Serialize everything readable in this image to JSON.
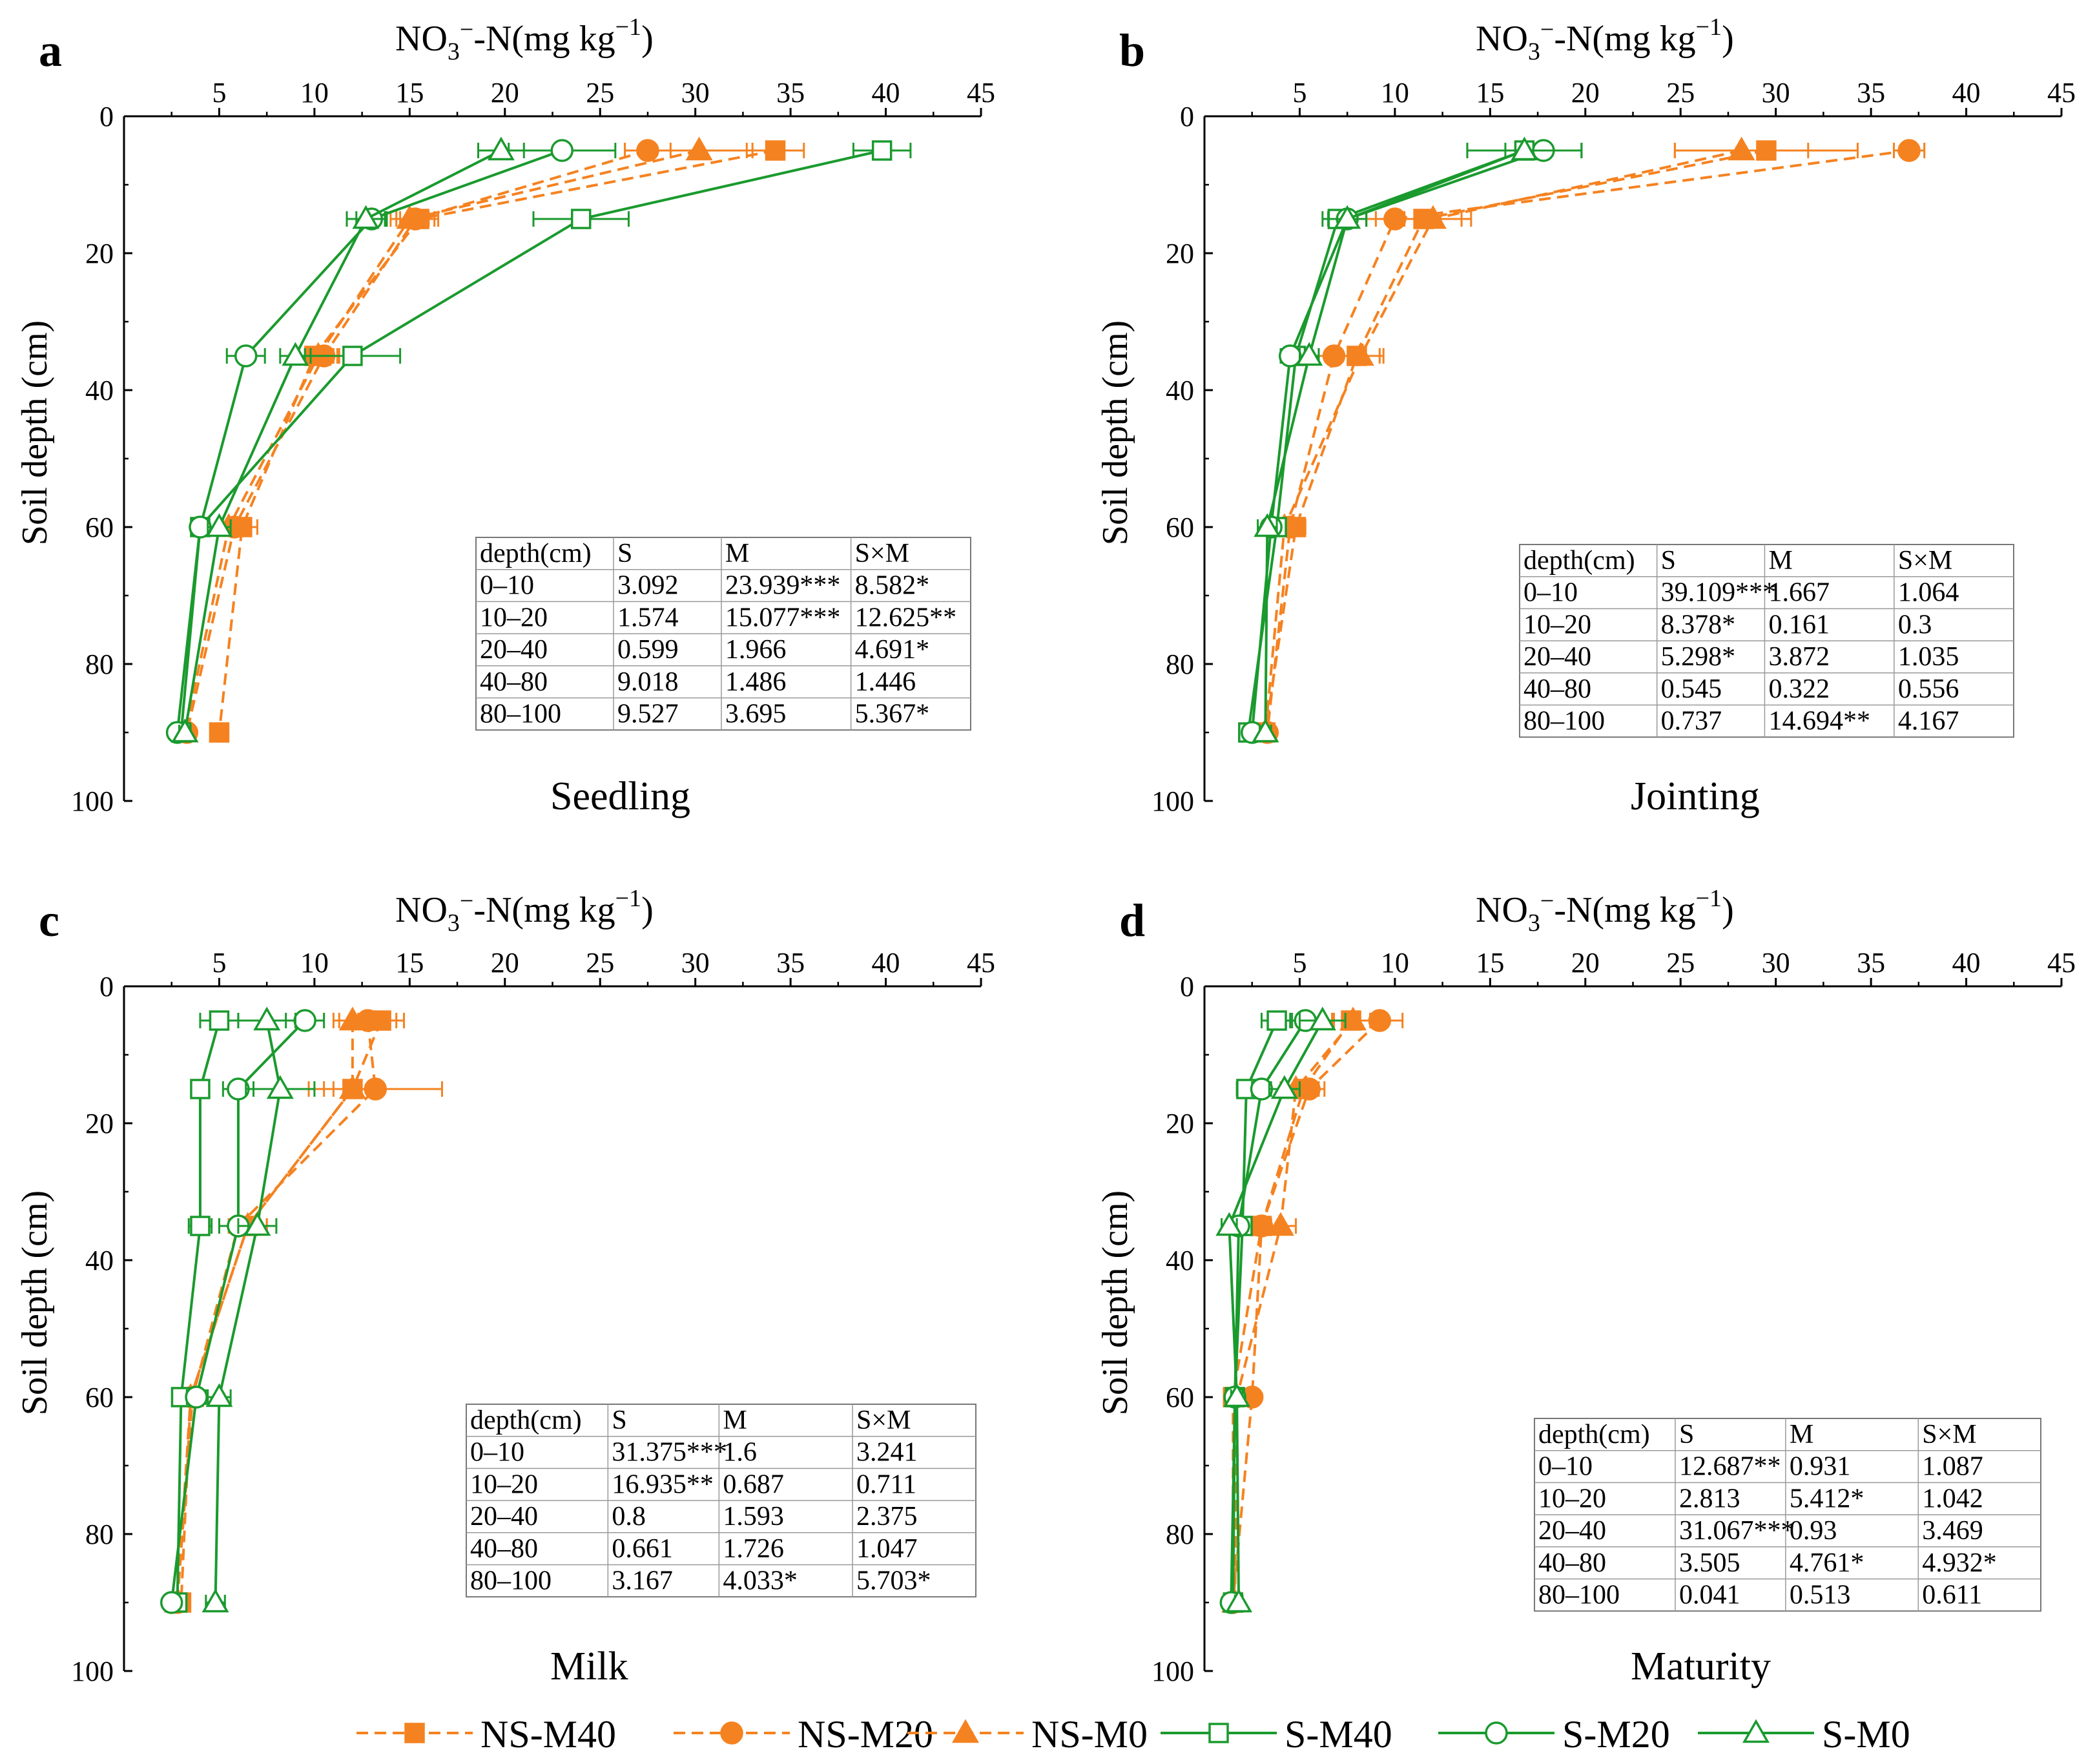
{
  "chart_data": {
    "type": "line",
    "x_axis_title": {
      "main": "NO",
      "sub": "3",
      "sup": "−",
      "rest": "-N(mg kg",
      "unit_sup": "−1",
      "close": ")"
    },
    "y_axis_title": "Soil depth (cm)",
    "xlim": [
      0,
      45
    ],
    "ylim": [
      0,
      100
    ],
    "x_ticks": [
      "5",
      "10",
      "15",
      "20",
      "25",
      "30",
      "35",
      "40",
      "45"
    ],
    "y_ticks": [
      "0",
      "20",
      "40",
      "60",
      "80",
      "100"
    ],
    "depths": [
      5,
      15,
      35,
      60,
      90
    ],
    "series_styles": [
      {
        "name": "NS-M40",
        "color": "#F58220",
        "dashed": true,
        "marker": "square",
        "filled": true
      },
      {
        "name": "NS-M20",
        "color": "#F58220",
        "dashed": true,
        "marker": "circle",
        "filled": true
      },
      {
        "name": "NS-M0",
        "color": "#F58220",
        "dashed": true,
        "marker": "triangle",
        "filled": true
      },
      {
        "name": "S-M40",
        "color": "#1A9A2E",
        "dashed": false,
        "marker": "square",
        "filled": false
      },
      {
        "name": "S-M20",
        "color": "#1A9A2E",
        "dashed": false,
        "marker": "circle",
        "filled": false
      },
      {
        "name": "S-M0",
        "color": "#1A9A2E",
        "dashed": false,
        "marker": "triangle",
        "filled": false
      }
    ],
    "panels": [
      {
        "letter": "a",
        "stage": "Seedling",
        "series": [
          {
            "name": "NS-M40",
            "x": [
              34.2,
              15.5,
              10.0,
              6.2,
              5.0
            ],
            "err": [
              1.5,
              1.0,
              1.0,
              0.8,
              0.2
            ]
          },
          {
            "name": "NS-M20",
            "x": [
              27.5,
              15.3,
              10.5,
              5.8,
              3.3
            ],
            "err": [
              1.2,
              1.0,
              0.8,
              0.6,
              0.2
            ]
          },
          {
            "name": "NS-M0",
            "x": [
              30.2,
              15.0,
              10.2,
              5.5,
              3.2
            ],
            "err": [
              2.8,
              1.0,
              1.0,
              0.6,
              0.2
            ]
          },
          {
            "name": "S-M40",
            "x": [
              39.8,
              24.0,
              12.0,
              4.0,
              3.0
            ],
            "err": [
              1.5,
              2.5,
              2.5,
              0.4,
              0.3
            ]
          },
          {
            "name": "S-M20",
            "x": [
              23.0,
              13.0,
              6.4,
              4.0,
              2.8
            ],
            "err": [
              2.8,
              0.8,
              1.0,
              0.3,
              0.3
            ]
          },
          {
            "name": "S-M0",
            "x": [
              19.8,
              12.7,
              9.0,
              5.0,
              3.2
            ],
            "err": [
              1.2,
              1.0,
              0.8,
              0.6,
              0.3
            ]
          }
        ],
        "stats": {
          "header": [
            "depth(cm)",
            "S",
            "M",
            "S×M"
          ],
          "rows": [
            [
              "0–10",
              "3.092",
              "23.939***",
              "8.582*"
            ],
            [
              "10–20",
              "1.574",
              "15.077***",
              "12.625**"
            ],
            [
              "20–40",
              "0.599",
              "1.966",
              "4.691*"
            ],
            [
              "40–80",
              "9.018",
              "1.486",
              "1.446"
            ],
            [
              "80–100",
              "9.527",
              "3.695",
              "5.367*"
            ]
          ]
        }
      },
      {
        "letter": "b",
        "stage": "Jointing",
        "series": [
          {
            "name": "NS-M40",
            "x": [
              29.5,
              11.5,
              8.0,
              4.8,
              3.2
            ],
            "err": [
              4.8,
              2.5,
              1.2,
              0.5,
              0.3
            ]
          },
          {
            "name": "NS-M20",
            "x": [
              37.0,
              10.0,
              6.8,
              4.5,
              3.3
            ],
            "err": [
              0.8,
              1.5,
              0.8,
              0.5,
              0.3
            ]
          },
          {
            "name": "NS-M0",
            "x": [
              28.2,
              12.0,
              8.2,
              4.2,
              3.2
            ],
            "err": [
              3.5,
              1.5,
              1.2,
              0.5,
              0.2
            ]
          },
          {
            "name": "S-M40",
            "x": [
              16.8,
              7.0,
              4.8,
              3.8,
              2.3
            ],
            "err": [
              3.0,
              0.8,
              0.5,
              0.4,
              0.3
            ]
          },
          {
            "name": "S-M20",
            "x": [
              17.8,
              7.5,
              4.5,
              3.5,
              2.5
            ],
            "err": [
              2.0,
              1.0,
              0.5,
              0.4,
              0.3
            ]
          },
          {
            "name": "S-M0",
            "x": [
              16.8,
              7.5,
              5.5,
              3.3,
              3.2
            ],
            "err": [
              3.0,
              1.0,
              0.5,
              0.5,
              0.3
            ]
          }
        ],
        "stats": {
          "header": [
            "depth(cm)",
            "S",
            "M",
            "S×M"
          ],
          "rows": [
            [
              "0–10",
              "39.109***",
              "1.667",
              "1.064"
            ],
            [
              "10–20",
              "8.378*",
              "0.161",
              "0.3"
            ],
            [
              "20–40",
              "5.298*",
              "3.872",
              "1.035"
            ],
            [
              "40–80",
              "0.545",
              "0.322",
              "0.556"
            ],
            [
              "80–100",
              "0.737",
              "14.694**",
              "4.167"
            ]
          ]
        }
      },
      {
        "letter": "c",
        "stage": "Milk",
        "series": [
          {
            "name": "NS-M40",
            "x": [
              13.5,
              12.0,
              6.5,
              3.5,
              3.0
            ],
            "err": [
              1.2,
              1.0,
              1.0,
              0.5,
              0.3
            ]
          },
          {
            "name": "NS-M20",
            "x": [
              12.8,
              13.2,
              6.0,
              3.6,
              2.8
            ],
            "err": [
              1.5,
              3.5,
              1.0,
              0.5,
              0.3
            ]
          },
          {
            "name": "NS-M0",
            "x": [
              12.0,
              12.0,
              6.5,
              3.5,
              2.8
            ],
            "err": [
              1.0,
              1.5,
              1.0,
              0.5,
              0.3
            ]
          },
          {
            "name": "S-M40",
            "x": [
              5.0,
              4.0,
              4.0,
              3.0,
              2.8
            ],
            "err": [
              1.0,
              0.2,
              0.6,
              0.3,
              0.3
            ]
          },
          {
            "name": "S-M20",
            "x": [
              9.5,
              6.0,
              6.0,
              3.8,
              2.5
            ],
            "err": [
              1.0,
              0.8,
              1.0,
              0.5,
              0.3
            ]
          },
          {
            "name": "S-M0",
            "x": [
              7.5,
              8.2,
              7.0,
              5.0,
              4.8
            ],
            "err": [
              1.5,
              1.8,
              1.0,
              0.6,
              0.5
            ]
          }
        ],
        "stats": {
          "header": [
            "depth(cm)",
            "S",
            "M",
            "S×M"
          ],
          "rows": [
            [
              "0–10",
              "31.375***",
              "1.6",
              "3.241"
            ],
            [
              "10–20",
              "16.935**",
              "0.687",
              "0.711"
            ],
            [
              "20–40",
              "0.8",
              "1.593",
              "2.375"
            ],
            [
              "40–80",
              "0.661",
              "1.726",
              "1.047"
            ],
            [
              "80–100",
              "3.167",
              "4.033*",
              "5.703*"
            ]
          ]
        }
      },
      {
        "letter": "d",
        "stage": "Maturity",
        "series": [
          {
            "name": "NS-M40",
            "x": [
              7.7,
              5.2,
              3.0,
              1.5,
              1.5
            ],
            "err": [
              1.0,
              0.8,
              0.5,
              0.2,
              0.2
            ]
          },
          {
            "name": "NS-M20",
            "x": [
              9.2,
              5.5,
              3.0,
              2.5,
              1.5
            ],
            "err": [
              1.2,
              0.8,
              0.5,
              0.3,
              0.2
            ]
          },
          {
            "name": "NS-M0",
            "x": [
              7.8,
              4.8,
              4.0,
              1.7,
              1.6
            ],
            "err": [
              1.0,
              0.8,
              0.8,
              0.3,
              0.2
            ]
          },
          {
            "name": "S-M40",
            "x": [
              3.8,
              2.2,
              2.0,
              1.6,
              1.5
            ],
            "err": [
              0.8,
              0.5,
              0.4,
              0.3,
              0.2
            ]
          },
          {
            "name": "S-M20",
            "x": [
              5.3,
              3.0,
              1.8,
              1.6,
              1.4
            ],
            "err": [
              0.8,
              0.5,
              0.4,
              0.3,
              0.2
            ]
          },
          {
            "name": "S-M0",
            "x": [
              6.2,
              4.2,
              1.3,
              1.7,
              1.8
            ],
            "err": [
              1.2,
              0.8,
              0.4,
              0.3,
              0.2
            ]
          }
        ],
        "stats": {
          "header": [
            "depth(cm)",
            "S",
            "M",
            "S×M"
          ],
          "rows": [
            [
              "0–10",
              "12.687**",
              "0.931",
              "1.087"
            ],
            [
              "10–20",
              "2.813",
              "5.412*",
              "1.042"
            ],
            [
              "20–40",
              "31.067***",
              "0.93",
              "3.469"
            ],
            [
              "40–80",
              "3.505",
              "4.761*",
              "4.932*"
            ],
            [
              "80–100",
              "0.041",
              "0.513",
              "0.611"
            ]
          ]
        }
      }
    ],
    "legend": {
      "position": "bottom-center",
      "labels": [
        "NS-M40",
        "NS-M20",
        "NS-M0",
        "S-M40",
        "S-M20",
        "S-M0"
      ]
    }
  }
}
